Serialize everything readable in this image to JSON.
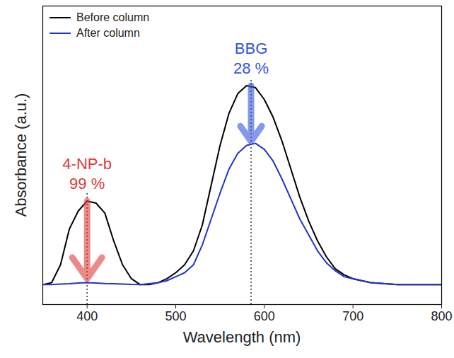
{
  "chart_data": {
    "type": "line",
    "x_label": "Wavelength (nm)",
    "y_label": "Absorbance (a.u.)",
    "xlim": [
      350,
      800
    ],
    "xticks": [
      400,
      500,
      600,
      700,
      800
    ],
    "ylim": [
      -0.1,
      1.4
    ],
    "tick_labels": "x",
    "legend": "top-left",
    "x": [
      350,
      360,
      370,
      380,
      390,
      400,
      410,
      420,
      430,
      440,
      450,
      460,
      470,
      480,
      490,
      500,
      510,
      520,
      530,
      540,
      550,
      560,
      570,
      580,
      590,
      600,
      610,
      620,
      630,
      640,
      650,
      660,
      670,
      680,
      690,
      700,
      720,
      750,
      800
    ],
    "series": [
      {
        "name": "Before column",
        "color": "#000000",
        "values": [
          0.0,
          0.01,
          0.1,
          0.28,
          0.37,
          0.42,
          0.41,
          0.36,
          0.22,
          0.1,
          0.03,
          0.0,
          0.0,
          0.01,
          0.03,
          0.06,
          0.1,
          0.17,
          0.3,
          0.5,
          0.7,
          0.86,
          0.96,
          1.0,
          0.99,
          0.93,
          0.84,
          0.72,
          0.58,
          0.44,
          0.32,
          0.22,
          0.14,
          0.08,
          0.05,
          0.03,
          0.01,
          0.0,
          0.0
        ]
      },
      {
        "name": "After column",
        "color": "#2233cc",
        "values": [
          0.0,
          0.0,
          0.003,
          0.005,
          0.008,
          0.01,
          0.008,
          0.006,
          0.005,
          0.003,
          0.001,
          0.0,
          0.005,
          0.01,
          0.02,
          0.04,
          0.06,
          0.1,
          0.2,
          0.33,
          0.46,
          0.58,
          0.66,
          0.7,
          0.71,
          0.68,
          0.62,
          0.53,
          0.43,
          0.33,
          0.25,
          0.17,
          0.11,
          0.07,
          0.04,
          0.03,
          0.01,
          0.0,
          0.0
        ]
      }
    ],
    "annotations": [
      {
        "label": "4-NP-b",
        "text": "99 %",
        "color": "#e03a3a",
        "x": 400,
        "y_from": 0.42,
        "y_to": 0.03
      },
      {
        "label": "BBG",
        "text": "28 %",
        "color": "#3355dd",
        "x": 585,
        "y_from": 1.0,
        "y_to": 0.72
      }
    ]
  }
}
